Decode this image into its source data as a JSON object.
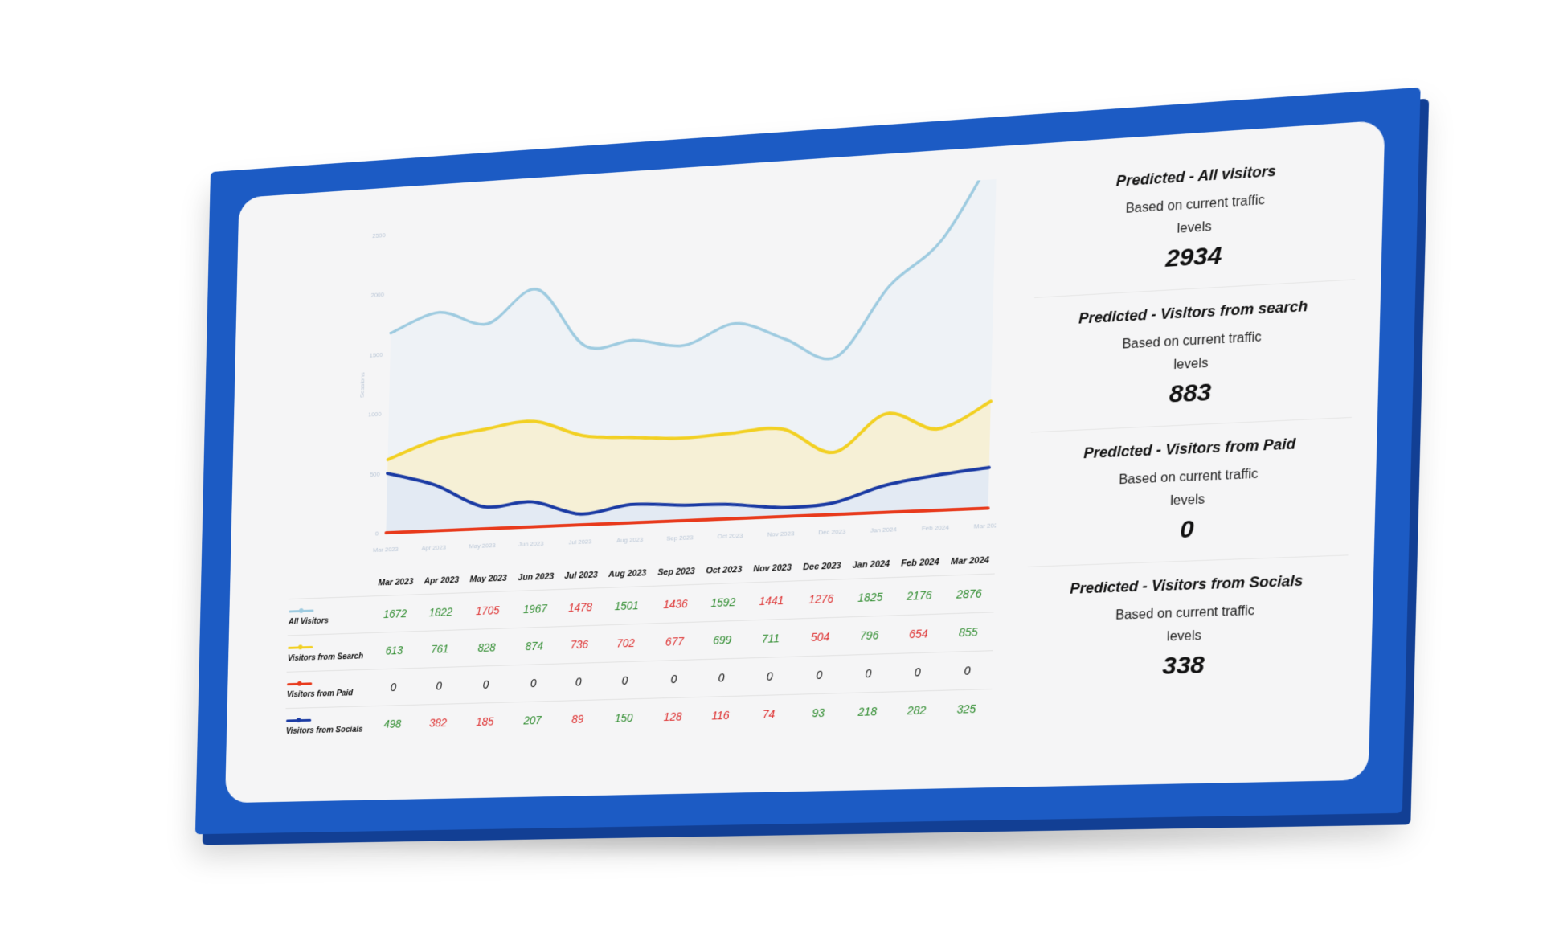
{
  "chart_data": {
    "type": "area",
    "categories": [
      "Mar 2023",
      "Apr 2023",
      "May 2023",
      "Jun 2023",
      "Jul 2023",
      "Aug 2023",
      "Sep 2023",
      "Oct 2023",
      "Nov 2023",
      "Dec 2023",
      "Jan 2024",
      "Feb 2024",
      "Mar 2024"
    ],
    "ylabel": "Sessions",
    "ylim": [
      0,
      2500
    ],
    "yticks": [
      "0",
      "500",
      "1000",
      "1500",
      "2000",
      "2500"
    ],
    "grid": false,
    "series": [
      {
        "name": "All Visitors",
        "color": "#9ecbe0",
        "fill": "#eef2f6",
        "values": [
          1672,
          1822,
          1705,
          1967,
          1478,
          1501,
          1436,
          1592,
          1441,
          1276,
          1825,
          2176,
          2876
        ]
      },
      {
        "name": "Visitors from Search",
        "color": "#f2d022",
        "fill": "#f6f0d6",
        "values": [
          613,
          761,
          828,
          874,
          736,
          702,
          677,
          699,
          711,
          504,
          796,
          654,
          855
        ]
      },
      {
        "name": "Visitors from Paid",
        "color": "#e83a1c",
        "fill": "none",
        "values": [
          0,
          0,
          0,
          0,
          0,
          0,
          0,
          0,
          0,
          0,
          0,
          0,
          0
        ]
      },
      {
        "name": "Visitors from Socials",
        "color": "#1a3aa3",
        "fill": "#e3eaf3",
        "values": [
          498,
          382,
          185,
          207,
          89,
          150,
          128,
          116,
          74,
          93,
          218,
          282,
          325
        ]
      }
    ]
  },
  "table": {
    "headers": [
      "Mar 2023",
      "Apr 2023",
      "May 2023",
      "Jun 2023",
      "Jul 2023",
      "Aug 2023",
      "Sep 2023",
      "Oct 2023",
      "Nov 2023",
      "Dec 2023",
      "Jan 2024",
      "Feb 2024",
      "Mar 2024"
    ],
    "rows": [
      {
        "label": "All Visitors",
        "values": [
          "1672",
          "1822",
          "1705",
          "1967",
          "1478",
          "1501",
          "1436",
          "1592",
          "1441",
          "1276",
          "1825",
          "2176",
          "2876"
        ],
        "trend": [
          "up",
          "up",
          "down",
          "up",
          "down",
          "up",
          "down",
          "up",
          "down",
          "down",
          "up",
          "up",
          "up"
        ]
      },
      {
        "label": "Visitors from Search",
        "values": [
          "613",
          "761",
          "828",
          "874",
          "736",
          "702",
          "677",
          "699",
          "711",
          "504",
          "796",
          "654",
          "855"
        ],
        "trend": [
          "up",
          "up",
          "up",
          "up",
          "down",
          "down",
          "down",
          "up",
          "up",
          "down",
          "up",
          "down",
          "up"
        ]
      },
      {
        "label": "Visitors from Paid",
        "values": [
          "0",
          "0",
          "0",
          "0",
          "0",
          "0",
          "0",
          "0",
          "0",
          "0",
          "0",
          "0",
          "0"
        ],
        "trend": [
          "flat",
          "flat",
          "flat",
          "flat",
          "flat",
          "flat",
          "flat",
          "flat",
          "flat",
          "flat",
          "flat",
          "flat",
          "flat"
        ]
      },
      {
        "label": "Visitors from Socials",
        "values": [
          "498",
          "382",
          "185",
          "207",
          "89",
          "150",
          "128",
          "116",
          "74",
          "93",
          "218",
          "282",
          "325"
        ],
        "trend": [
          "up",
          "down",
          "down",
          "up",
          "down",
          "up",
          "down",
          "down",
          "down",
          "up",
          "up",
          "up",
          "up"
        ]
      }
    ]
  },
  "stats": [
    {
      "title": "Predicted - All visitors",
      "sub": "Based on current traffic levels",
      "value": "2934"
    },
    {
      "title": "Predicted - Visitors from search",
      "sub": "Based on current traffic levels",
      "value": "883"
    },
    {
      "title": "Predicted - Visitors  from Paid",
      "sub": "Based on current traffic levels",
      "value": "0"
    },
    {
      "title": "Predicted - Visitors from Socials",
      "sub": "Based on current traffic levels",
      "value": "338"
    }
  ],
  "colors": {
    "frame": "#1c5bc4",
    "panel": "#f5f5f6",
    "positive": "#2b8a2b",
    "negative": "#dd2c2c"
  }
}
